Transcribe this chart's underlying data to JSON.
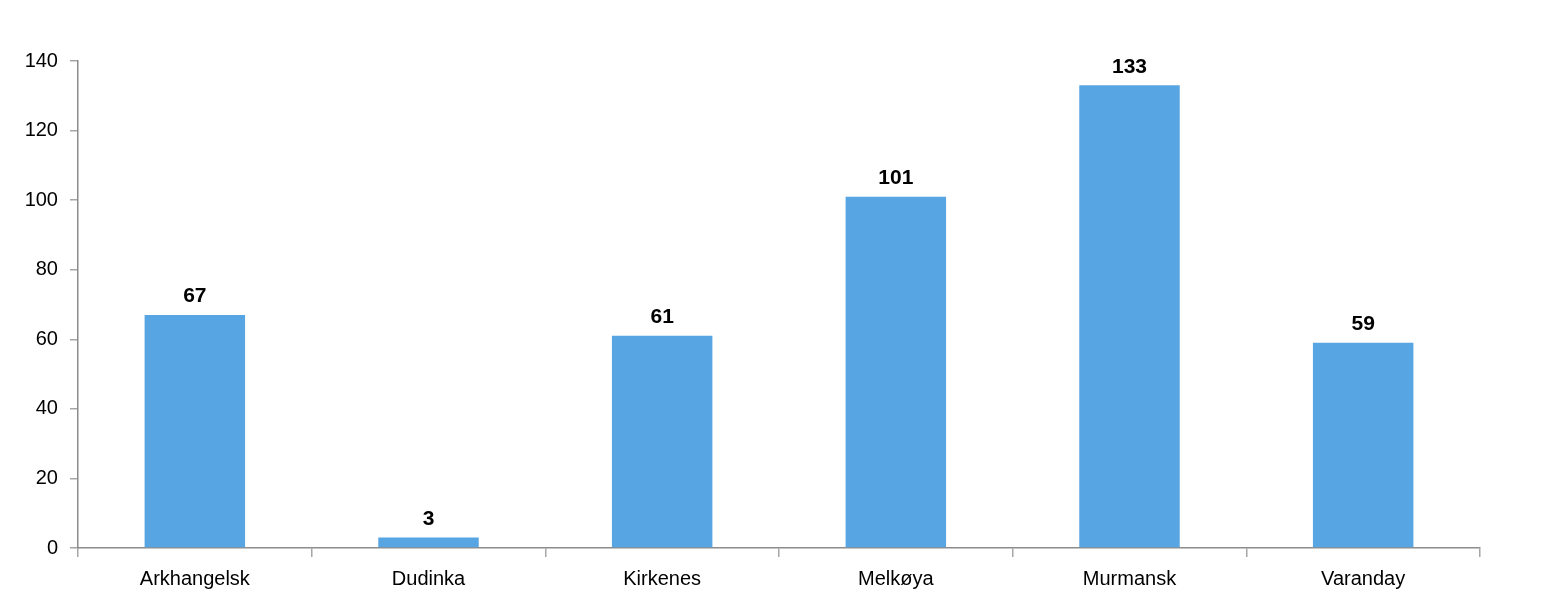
{
  "chart_data": {
    "type": "bar",
    "categories": [
      "Arkhangelsk",
      "Dudinka",
      "Kirkenes",
      "Melkøya",
      "Murmansk",
      "Varanday"
    ],
    "values": [
      67,
      3,
      61,
      101,
      133,
      59
    ],
    "color": "#58a5e3",
    "ylim": [
      0,
      140
    ],
    "yticks": [
      0,
      20,
      40,
      60,
      80,
      100,
      120,
      140
    ],
    "data_labels": true
  }
}
